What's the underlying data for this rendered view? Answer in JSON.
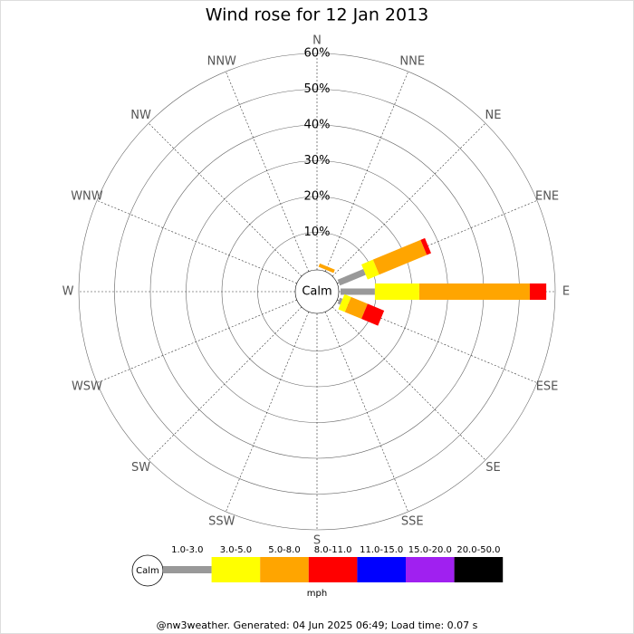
{
  "chart_data": {
    "type": "windrose",
    "title": "Wind rose for 12 Jan 2013",
    "categories": [
      "N",
      "NNE",
      "NE",
      "ENE",
      "E",
      "ESE",
      "SE",
      "SSE",
      "S",
      "SSW",
      "SW",
      "WSW",
      "W",
      "WNW",
      "NW",
      "NNW"
    ],
    "calm_label": "Calm",
    "unit_label": "mph",
    "footer": "@nw3weather. Generated: 04 Jun 2025 06:49; Load time: 0.07 s",
    "rlim": [
      0,
      60
    ],
    "rticks": [
      {
        "value": 10,
        "label": "10%"
      },
      {
        "value": 20,
        "label": "20%"
      },
      {
        "value": 30,
        "label": "30%"
      },
      {
        "value": 40,
        "label": "40%"
      },
      {
        "value": 50,
        "label": "50%"
      },
      {
        "value": 60,
        "label": "60%"
      }
    ],
    "series": [
      {
        "name": "1.0-3.0",
        "color": "#999999",
        "values": [
          0,
          0,
          0,
          7.8,
          9.6,
          0.8,
          0,
          0,
          0,
          0,
          0,
          0,
          0,
          0,
          0,
          0
        ]
      },
      {
        "name": "3.0-5.0",
        "color": "#ffff00",
        "values": [
          0,
          0,
          0,
          3.5,
          12.4,
          2,
          0,
          0,
          0,
          0,
          0,
          0,
          0,
          0,
          0,
          0
        ]
      },
      {
        "name": "5.0-8.0",
        "color": "#ffa500",
        "values": [
          0,
          1,
          0,
          14.4,
          30.9,
          5,
          0,
          0,
          0,
          0,
          0,
          0,
          0,
          0,
          0,
          0
        ]
      },
      {
        "name": "8.0-11.0",
        "color": "#ff0000",
        "values": [
          0,
          0,
          0,
          1.3,
          4.6,
          5,
          0,
          0,
          0,
          0,
          0,
          0,
          0,
          0,
          0,
          0
        ]
      },
      {
        "name": "11.0-15.0",
        "color": "#0000ff",
        "values": [
          0,
          0,
          0,
          0,
          0,
          0,
          0,
          0,
          0,
          0,
          0,
          0,
          0,
          0,
          0,
          0
        ]
      },
      {
        "name": "15.0-20.0",
        "color": "#a020f0",
        "values": [
          0,
          0,
          0,
          0,
          0,
          0,
          0,
          0,
          0,
          0,
          0,
          0,
          0,
          0,
          0,
          0
        ]
      },
      {
        "name": "20.0-50.0",
        "color": "#000000",
        "values": [
          0,
          0,
          0,
          0,
          0,
          0,
          0,
          0,
          0,
          0,
          0,
          0,
          0,
          0,
          0,
          0
        ]
      }
    ]
  }
}
